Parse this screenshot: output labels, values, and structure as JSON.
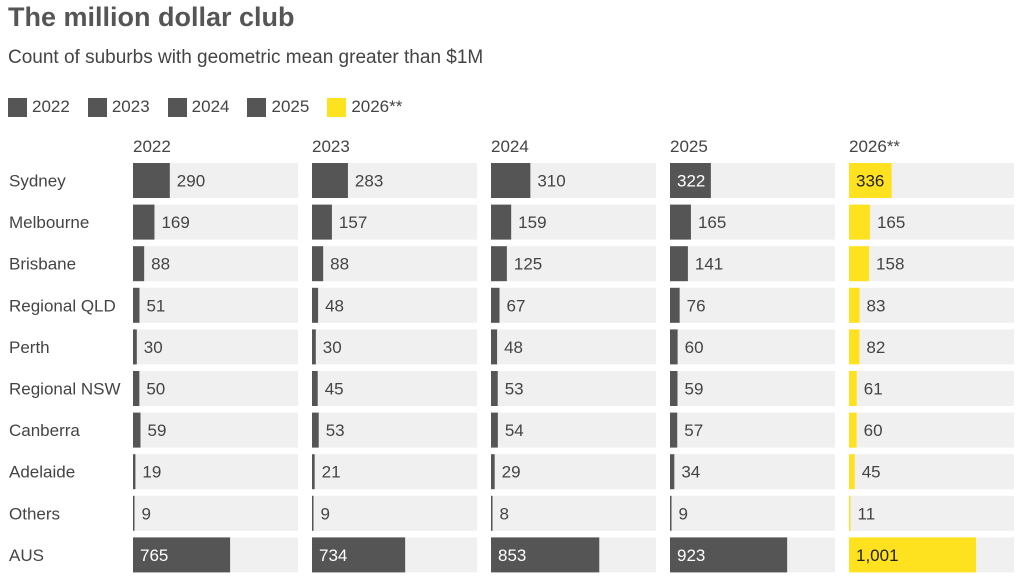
{
  "chart_data": {
    "type": "bar",
    "title": "The million dollar club",
    "subtitle": "Count of suburbs with geometric mean greater than $1M",
    "legend": [
      "2022",
      "2023",
      "2024",
      "2025",
      "2026**"
    ],
    "legend_placement": "top-left",
    "categories": [
      "Sydney",
      "Melbourne",
      "Brisbane",
      "Regional QLD",
      "Perth",
      "Regional NSW",
      "Canberra",
      "Adelaide",
      "Others",
      "AUS"
    ],
    "series": [
      {
        "name": "2022",
        "color": "#555555",
        "values": [
          290,
          169,
          88,
          51,
          30,
          50,
          59,
          19,
          9,
          765
        ],
        "labels": [
          "290",
          "169",
          "88",
          "51",
          "30",
          "50",
          "59",
          "19",
          "9",
          "765"
        ]
      },
      {
        "name": "2023",
        "color": "#555555",
        "values": [
          283,
          157,
          88,
          48,
          30,
          45,
          53,
          21,
          9,
          734
        ],
        "labels": [
          "283",
          "157",
          "88",
          "48",
          "30",
          "45",
          "53",
          "21",
          "9",
          "734"
        ]
      },
      {
        "name": "2024",
        "color": "#555555",
        "values": [
          310,
          159,
          125,
          67,
          48,
          53,
          54,
          29,
          8,
          853
        ],
        "labels": [
          "310",
          "159",
          "125",
          "67",
          "48",
          "53",
          "54",
          "29",
          "8",
          "853"
        ]
      },
      {
        "name": "2025",
        "color": "#555555",
        "values": [
          322,
          165,
          141,
          76,
          60,
          59,
          57,
          34,
          9,
          923
        ],
        "labels": [
          "322",
          "165",
          "141",
          "76",
          "60",
          "59",
          "57",
          "34",
          "9",
          "923"
        ]
      },
      {
        "name": "2026**",
        "color": "#FFE21F",
        "values": [
          336,
          165,
          158,
          83,
          82,
          61,
          60,
          45,
          11,
          1001
        ],
        "labels": [
          "336",
          "165",
          "158",
          "83",
          "82",
          "61",
          "60",
          "45",
          "11",
          "1,001"
        ]
      }
    ],
    "colors": {
      "bar": "#555555",
      "highlight": "#FFE21F",
      "track": "#F0F0F0"
    }
  }
}
